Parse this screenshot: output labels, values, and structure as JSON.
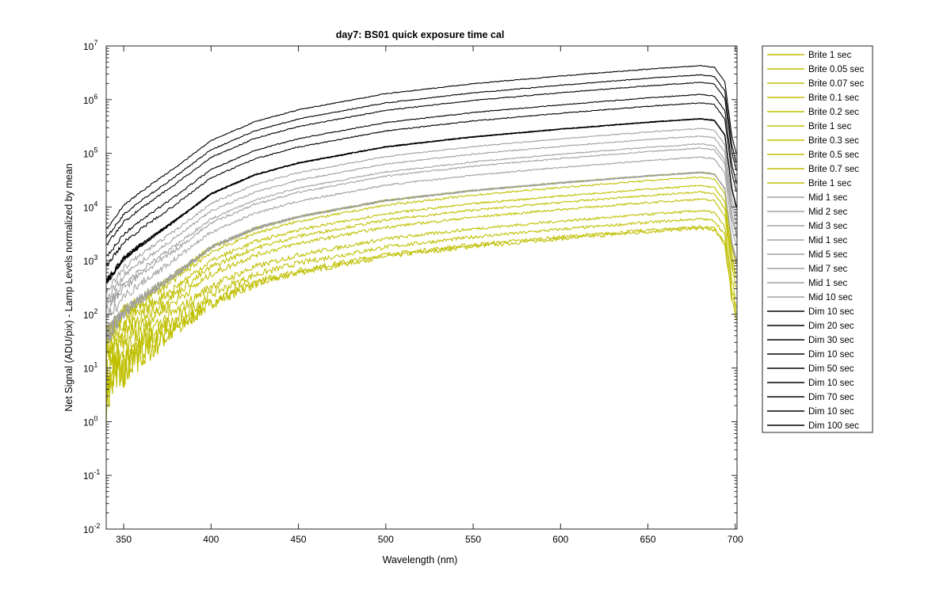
{
  "chart_data": {
    "type": "line",
    "title": "day7: BS01  quick exposure time cal",
    "xlabel": "Wavelength (nm)",
    "ylabel": "Net Signal (ADU/pix) - Lamp Levels normalized by mean",
    "xlim": [
      340,
      701
    ],
    "ylim": [
      0.01,
      10000000
    ],
    "yscale": "log",
    "grid": false,
    "legend_position": "outside-right",
    "x_ticks": [
      350,
      400,
      450,
      500,
      550,
      600,
      650,
      700
    ],
    "y_ticks": [
      {
        "base": "10",
        "exp": "-2"
      },
      {
        "base": "10",
        "exp": "-1"
      },
      {
        "base": "10",
        "exp": "0"
      },
      {
        "base": "10",
        "exp": "1"
      },
      {
        "base": "10",
        "exp": "2"
      },
      {
        "base": "10",
        "exp": "3"
      },
      {
        "base": "10",
        "exp": "4"
      },
      {
        "base": "10",
        "exp": "5"
      },
      {
        "base": "10",
        "exp": "6"
      },
      {
        "base": "10",
        "exp": "7"
      }
    ],
    "colors": {
      "Brite": "#bfbf00",
      "Mid": "#a0a0a0",
      "Dim": "#000000"
    },
    "profile_x": [
      340,
      345,
      350,
      360,
      380,
      400,
      425,
      450,
      500,
      550,
      600,
      650,
      680,
      688,
      694,
      698,
      701
    ],
    "profile_shape": [
      0.0009,
      0.0015,
      0.0025,
      0.0045,
      0.013,
      0.04,
      0.09,
      0.15,
      0.3,
      0.46,
      0.64,
      0.86,
      1.0,
      0.93,
      0.5,
      0.05,
      0.02
    ],
    "series": [
      {
        "name": "Brite 1 sec",
        "group": "Brite",
        "peak": 4000
      },
      {
        "name": "Brite 0.05 sec",
        "group": "Brite",
        "peak": 4300
      },
      {
        "name": "Brite 0.07 sec",
        "group": "Brite",
        "peak": 6000
      },
      {
        "name": "Brite 0.1 sec",
        "group": "Brite",
        "peak": 8500
      },
      {
        "name": "Brite 0.2 sec",
        "group": "Brite",
        "peak": 14000
      },
      {
        "name": "Brite 1 sec",
        "group": "Brite",
        "peak": 19000
      },
      {
        "name": "Brite 0.3 sec",
        "group": "Brite",
        "peak": 25000
      },
      {
        "name": "Brite 0.5 sec",
        "group": "Brite",
        "peak": 36000
      },
      {
        "name": "Brite 0.7 sec",
        "group": "Brite",
        "peak": 44000
      },
      {
        "name": "Brite 1 sec",
        "group": "Brite",
        "peak": 44000
      },
      {
        "name": "Mid 1 sec",
        "group": "Mid",
        "peak": 44000
      },
      {
        "name": "Mid 2 sec",
        "group": "Mid",
        "peak": 85000
      },
      {
        "name": "Mid 3 sec",
        "group": "Mid",
        "peak": 125000
      },
      {
        "name": "Mid 1 sec",
        "group": "Mid",
        "peak": 44000
      },
      {
        "name": "Mid 5 sec",
        "group": "Mid",
        "peak": 210000
      },
      {
        "name": "Mid 7 sec",
        "group": "Mid",
        "peak": 290000
      },
      {
        "name": "Mid 1 sec",
        "group": "Mid",
        "peak": 44000
      },
      {
        "name": "Mid 10 sec",
        "group": "Mid",
        "peak": 150000
      },
      {
        "name": "Dim 10 sec",
        "group": "Dim",
        "peak": 440000
      },
      {
        "name": "Dim 20 sec",
        "group": "Dim",
        "peak": 870000
      },
      {
        "name": "Dim 30 sec",
        "group": "Dim",
        "peak": 1250000
      },
      {
        "name": "Dim 10 sec",
        "group": "Dim",
        "peak": 440000
      },
      {
        "name": "Dim 50 sec",
        "group": "Dim",
        "peak": 2100000
      },
      {
        "name": "Dim 10 sec",
        "group": "Dim",
        "peak": 440000
      },
      {
        "name": "Dim 70 sec",
        "group": "Dim",
        "peak": 2900000
      },
      {
        "name": "Dim 10 sec",
        "group": "Dim",
        "peak": 440000
      },
      {
        "name": "Dim 100 sec",
        "group": "Dim",
        "peak": 4300000
      }
    ]
  }
}
